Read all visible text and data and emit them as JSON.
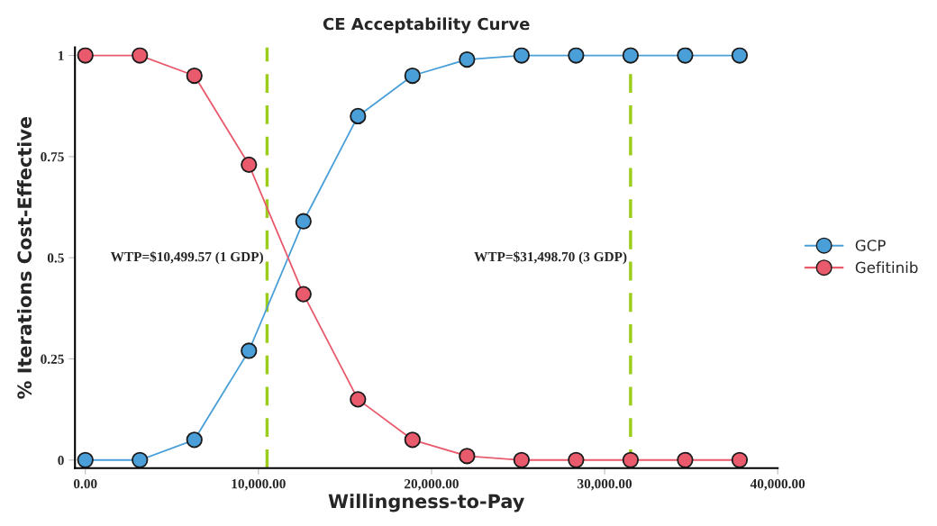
{
  "chart_data": {
    "type": "line",
    "title": "CE Acceptability Curve",
    "xlabel": "Willingness-to-Pay",
    "ylabel": "% Iterations Cost-Effective",
    "x": [
      0,
      3150,
      6300,
      9450,
      12600,
      15750,
      18900,
      22050,
      25200,
      28350,
      31500,
      34650,
      37800
    ],
    "series": [
      {
        "name": "GCP",
        "color": "#4a9fd8",
        "values": [
          0,
          0,
          0.05,
          0.27,
          0.59,
          0.85,
          0.95,
          0.99,
          1,
          1,
          1,
          1,
          1
        ]
      },
      {
        "name": "Gefitinib",
        "color": "#e85a6c",
        "values": [
          1,
          1,
          0.95,
          0.73,
          0.41,
          0.15,
          0.05,
          0.01,
          0,
          0,
          0,
          0,
          0
        ]
      }
    ],
    "xlim": [
      -600,
      40000
    ],
    "xticks": [
      {
        "value": 0,
        "label": "0.00"
      },
      {
        "value": 10000,
        "label": "10,000.00"
      },
      {
        "value": 20000,
        "label": "20,000.00"
      },
      {
        "value": 30000,
        "label": "30,000.00"
      },
      {
        "value": 40000,
        "label": "40,000.00"
      }
    ],
    "ylim": [
      -0.02,
      1.02
    ],
    "yticks": [
      0,
      0.25,
      0.5,
      0.75,
      1
    ],
    "ref_lines": [
      {
        "axis": "x",
        "value": 10499.57,
        "label": "WTP=$10,499.57 (1 GDP)",
        "color": "#9ccc1c",
        "line_style": "dashed"
      },
      {
        "axis": "x",
        "value": 31498.7,
        "label": "WTP=$31,498.70 (3 GDP)",
        "color": "#9ccc1c",
        "line_style": "dashed"
      }
    ],
    "marker": "circle",
    "line_style": "solid",
    "grid": false,
    "legend": "right"
  }
}
